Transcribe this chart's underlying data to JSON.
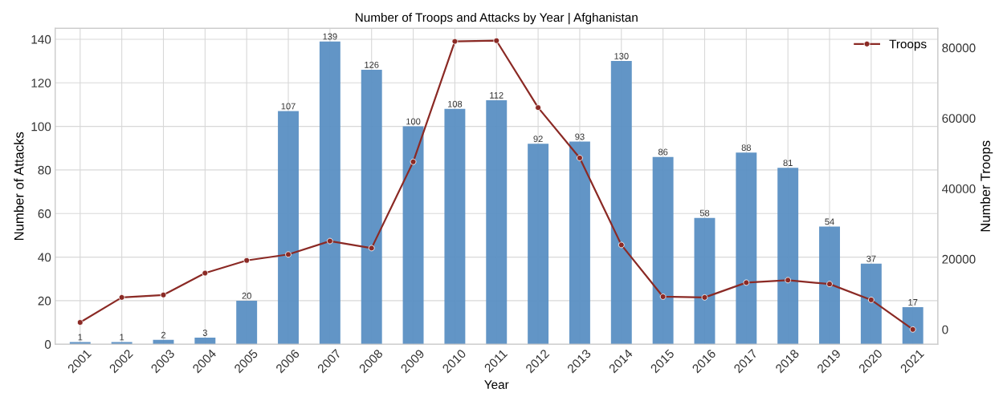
{
  "chart_data": {
    "type": "bar",
    "title": "Number of Troops and Attacks by Year | Afghanistan",
    "xlabel": "Year",
    "ylabel": "Number of Attacks",
    "y2label": "Number Troops",
    "categories": [
      "2001",
      "2002",
      "2003",
      "2004",
      "2005",
      "2006",
      "2007",
      "2008",
      "2009",
      "2010",
      "2011",
      "2012",
      "2013",
      "2014",
      "2015",
      "2016",
      "2017",
      "2018",
      "2019",
      "2020",
      "2021"
    ],
    "series": [
      {
        "color": "#5a8fc3",
        "values": [
          1,
          1,
          2,
          3,
          20,
          107,
          139,
          126,
          100,
          108,
          112,
          92,
          93,
          130,
          86,
          58,
          88,
          81,
          54,
          37,
          17
        ],
        "value_labels": [
          "1",
          "1",
          "2",
          "3",
          "20",
          "107",
          "139",
          "126",
          "100",
          "108",
          "112",
          "92",
          "93",
          "130",
          "86",
          "58",
          "88",
          "81",
          "54",
          "37",
          "17"
        ]
      },
      {
        "type": "line",
        "name": "Troops",
        "axis": "y2",
        "color": "#8b2a25",
        "values": [
          2000,
          9100,
          9800,
          16000,
          19600,
          21300,
          25100,
          23100,
          47600,
          81800,
          82000,
          63000,
          48700,
          24000,
          9300,
          9100,
          13300,
          14000,
          12900,
          8400,
          0
        ]
      }
    ],
    "ylim": [
      0,
      145
    ],
    "yticks": [
      0,
      20,
      40,
      60,
      80,
      100,
      120,
      140
    ],
    "y2lim": [
      -4200,
      85500
    ],
    "y2ticks": [
      0,
      20000,
      40000,
      60000,
      80000
    ],
    "grid": true,
    "legend": "top right",
    "marker": "circle",
    "line_style": "solid"
  }
}
